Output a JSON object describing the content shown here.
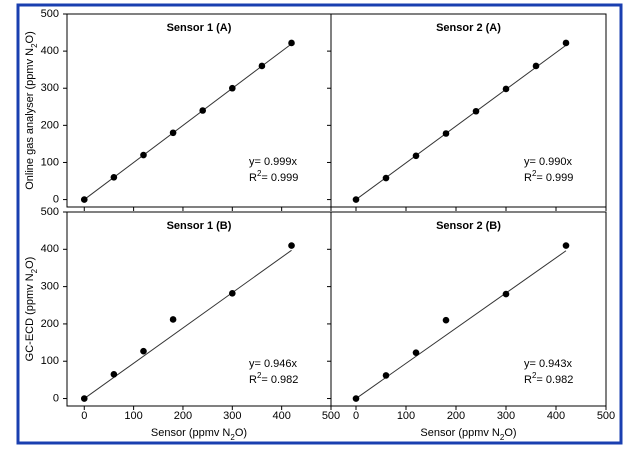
{
  "chart_data": [
    {
      "type": "scatter",
      "title": "Sensor 1 (A)",
      "ylabel": [
        "Online gas analyser (ppmv N",
        "2",
        "O)"
      ],
      "x": [
        0,
        60,
        120,
        180,
        240,
        300,
        360,
        420
      ],
      "y": [
        0,
        60,
        120,
        180,
        240,
        300,
        360,
        422
      ],
      "xlim": [
        -35,
        500
      ],
      "ylim": [
        -20,
        500
      ],
      "xticks": [
        0,
        100,
        200,
        300,
        400,
        500
      ],
      "yticks": [
        0,
        100,
        200,
        300,
        400,
        500
      ],
      "fit_slope": 0.999,
      "slope_label": "y= 0.999x",
      "r2_label": [
        "R",
        "2",
        "= 0.999"
      ],
      "color": "#000000"
    },
    {
      "type": "scatter",
      "title": "Sensor 2 (A)",
      "x": [
        0,
        60,
        120,
        180,
        240,
        300,
        360,
        420
      ],
      "y": [
        0,
        58,
        118,
        178,
        238,
        298,
        360,
        422
      ],
      "xlim": [
        -50,
        500
      ],
      "ylim": [
        -20,
        500
      ],
      "xticks": [
        0,
        100,
        200,
        300,
        400,
        500
      ],
      "yticks": [
        0,
        100,
        200,
        300,
        400,
        500
      ],
      "fit_slope": 0.99,
      "slope_label": "y= 0.990x",
      "r2_label": [
        "R",
        "2",
        "= 0.999"
      ],
      "color": "#000000"
    },
    {
      "type": "scatter",
      "title": "Sensor 1 (B)",
      "ylabel": [
        "GC-ECD (ppmv N",
        "2",
        "O)"
      ],
      "xlabel": [
        "Sensor (ppmv N",
        "2",
        "O)"
      ],
      "x": [
        0,
        60,
        120,
        180,
        300,
        420
      ],
      "y": [
        0,
        65,
        127,
        212,
        282,
        410
      ],
      "xlim": [
        -35,
        500
      ],
      "ylim": [
        -20,
        500
      ],
      "xticks": [
        0,
        100,
        200,
        300,
        400,
        500
      ],
      "yticks": [
        0,
        100,
        200,
        300,
        400,
        500
      ],
      "fit_slope": 0.946,
      "slope_label": "y= 0.946x",
      "r2_label": [
        "R",
        "2",
        "= 0.982"
      ],
      "color": "#000000"
    },
    {
      "type": "scatter",
      "title": "Sensor 2 (B)",
      "xlabel": [
        "Sensor (ppmv N",
        "2",
        "O)"
      ],
      "x": [
        0,
        60,
        120,
        180,
        300,
        420
      ],
      "y": [
        0,
        62,
        123,
        210,
        280,
        410
      ],
      "xlim": [
        -50,
        500
      ],
      "ylim": [
        -20,
        500
      ],
      "xticks": [
        0,
        100,
        200,
        300,
        400,
        500
      ],
      "yticks": [
        0,
        100,
        200,
        300,
        400,
        500
      ],
      "fit_slope": 0.943,
      "slope_label": "y= 0.943x",
      "r2_label": [
        "R",
        "2",
        "= 0.982"
      ],
      "color": "#000000"
    }
  ]
}
